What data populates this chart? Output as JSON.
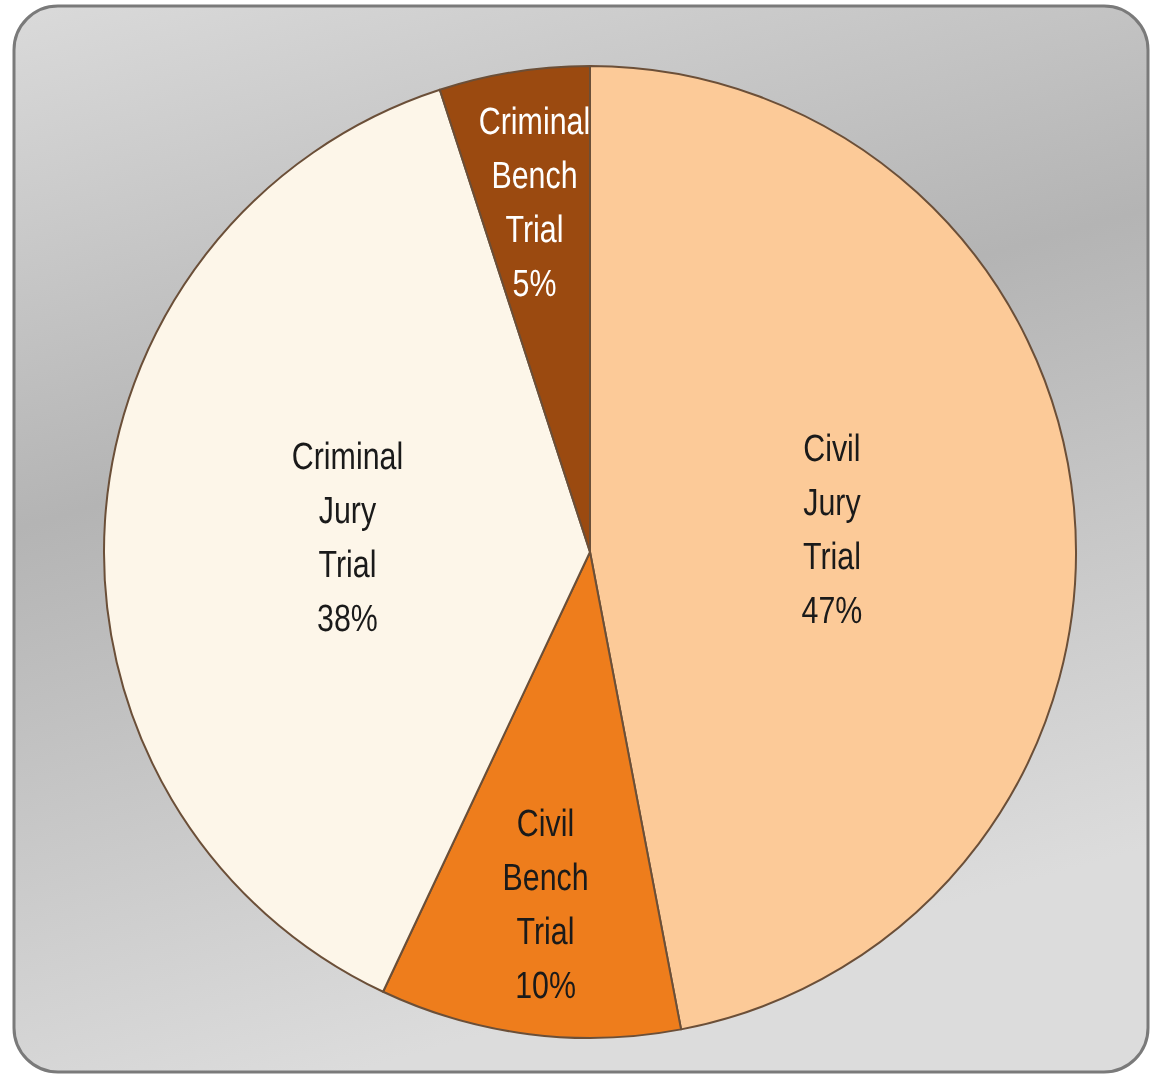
{
  "chart_data": {
    "type": "pie",
    "categories": [
      "Civil Jury Trial",
      "Civil Bench Trial",
      "Criminal Jury Trial",
      "Criminal Bench Trial"
    ],
    "values": [
      47,
      10,
      38,
      5
    ],
    "colors": [
      "#fcca98",
      "#ee7d1c",
      "#fdf6e9",
      "#9b4a10"
    ],
    "value_labels": [
      "47%",
      "10%",
      "38%",
      "5%"
    ]
  }
}
